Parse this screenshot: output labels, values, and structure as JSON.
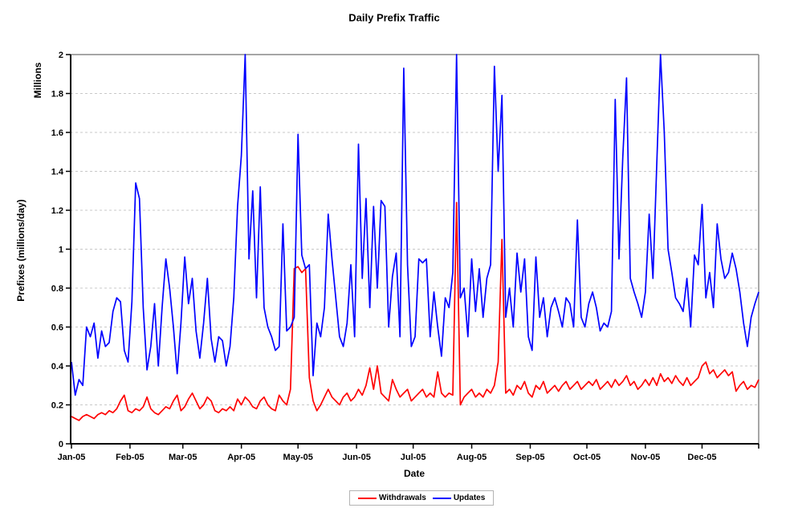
{
  "chart_data": {
    "type": "line",
    "title": "Daily Prefix Traffic",
    "xlabel": "Date",
    "ylabel": "Prefixes (millions/day)",
    "y_units_label": "Millions",
    "ylim": [
      0,
      2
    ],
    "y_tick_step": 0.2,
    "y_ticks": [
      "0",
      "0.2",
      "0.4",
      "0.6",
      "0.8",
      "1",
      "1.2",
      "1.4",
      "1.6",
      "1.8",
      "2"
    ],
    "x_tick_labels": [
      "Jan-05",
      "Feb-05",
      "Mar-05",
      "Apr-05",
      "May-05",
      "Jun-05",
      "Jul-05",
      "Aug-05",
      "Sep-05",
      "Oct-05",
      "Nov-05",
      "Dec-05"
    ],
    "x_tick_days": [
      0,
      31,
      59,
      90,
      120,
      151,
      181,
      212,
      243,
      273,
      304,
      334
    ],
    "days_total": 365,
    "grid": "horizontal-dashed",
    "grid_color": "#c8c8c8",
    "border_color": "#888888",
    "axis_color": "#000000",
    "legend_position": "bottom-center",
    "series": [
      {
        "name": "Withdrawals",
        "color": "#ff0000",
        "start_day": 0,
        "step_days": 2,
        "values": [
          0.14,
          0.13,
          0.12,
          0.14,
          0.15,
          0.14,
          0.13,
          0.15,
          0.16,
          0.15,
          0.17,
          0.16,
          0.18,
          0.22,
          0.25,
          0.17,
          0.16,
          0.18,
          0.17,
          0.19,
          0.24,
          0.18,
          0.16,
          0.15,
          0.17,
          0.19,
          0.18,
          0.22,
          0.25,
          0.17,
          0.19,
          0.23,
          0.26,
          0.22,
          0.18,
          0.2,
          0.24,
          0.22,
          0.17,
          0.16,
          0.18,
          0.17,
          0.19,
          0.17,
          0.23,
          0.2,
          0.24,
          0.22,
          0.19,
          0.18,
          0.22,
          0.24,
          0.2,
          0.18,
          0.17,
          0.25,
          0.22,
          0.2,
          0.28,
          0.9,
          0.91,
          0.88,
          0.9,
          0.34,
          0.22,
          0.17,
          0.2,
          0.24,
          0.28,
          0.24,
          0.22,
          0.2,
          0.24,
          0.26,
          0.22,
          0.24,
          0.28,
          0.25,
          0.3,
          0.39,
          0.28,
          0.4,
          0.26,
          0.24,
          0.22,
          0.33,
          0.28,
          0.24,
          0.26,
          0.28,
          0.22,
          0.24,
          0.26,
          0.28,
          0.24,
          0.26,
          0.24,
          0.37,
          0.26,
          0.24,
          0.26,
          0.25,
          1.24,
          0.2,
          0.24,
          0.26,
          0.28,
          0.24,
          0.26,
          0.24,
          0.28,
          0.26,
          0.3,
          0.42,
          1.05,
          0.26,
          0.28,
          0.25,
          0.3,
          0.28,
          0.32,
          0.26,
          0.24,
          0.3,
          0.28,
          0.32,
          0.26,
          0.28,
          0.3,
          0.27,
          0.3,
          0.32,
          0.28,
          0.3,
          0.32,
          0.28,
          0.3,
          0.32,
          0.3,
          0.33,
          0.28,
          0.3,
          0.32,
          0.29,
          0.33,
          0.3,
          0.32,
          0.35,
          0.3,
          0.32,
          0.28,
          0.3,
          0.33,
          0.3,
          0.34,
          0.3,
          0.36,
          0.32,
          0.34,
          0.31,
          0.35,
          0.32,
          0.3,
          0.34,
          0.3,
          0.32,
          0.34,
          0.4,
          0.42,
          0.36,
          0.38,
          0.34,
          0.36,
          0.38,
          0.35,
          0.37,
          0.27,
          0.3,
          0.32,
          0.28,
          0.3,
          0.29,
          0.33
        ]
      },
      {
        "name": "Updates",
        "color": "#0000ff",
        "start_day": 0,
        "step_days": 2,
        "values": [
          0.42,
          0.25,
          0.33,
          0.3,
          0.6,
          0.55,
          0.62,
          0.44,
          0.58,
          0.5,
          0.52,
          0.68,
          0.75,
          0.73,
          0.48,
          0.42,
          0.73,
          1.34,
          1.26,
          0.7,
          0.38,
          0.5,
          0.72,
          0.4,
          0.7,
          0.95,
          0.8,
          0.6,
          0.36,
          0.62,
          0.96,
          0.72,
          0.85,
          0.58,
          0.44,
          0.62,
          0.85,
          0.54,
          0.42,
          0.55,
          0.53,
          0.4,
          0.5,
          0.75,
          1.22,
          1.48,
          2.0,
          0.95,
          1.3,
          0.75,
          1.32,
          0.7,
          0.6,
          0.55,
          0.48,
          0.5,
          1.13,
          0.58,
          0.6,
          0.65,
          1.59,
          0.97,
          0.9,
          0.92,
          0.35,
          0.62,
          0.55,
          0.7,
          1.18,
          0.95,
          0.75,
          0.55,
          0.5,
          0.62,
          0.92,
          0.55,
          1.54,
          0.85,
          1.26,
          0.7,
          1.22,
          0.8,
          1.25,
          1.22,
          0.6,
          0.86,
          0.98,
          0.55,
          1.93,
          0.92,
          0.5,
          0.55,
          0.95,
          0.93,
          0.95,
          0.55,
          0.78,
          0.6,
          0.45,
          0.75,
          0.7,
          0.88,
          2.0,
          0.75,
          0.8,
          0.55,
          0.95,
          0.68,
          0.9,
          0.65,
          0.85,
          0.92,
          1.94,
          1.4,
          1.79,
          0.65,
          0.8,
          0.6,
          0.98,
          0.78,
          0.95,
          0.55,
          0.48,
          0.96,
          0.65,
          0.75,
          0.55,
          0.7,
          0.75,
          0.68,
          0.6,
          0.75,
          0.72,
          0.6,
          1.15,
          0.65,
          0.6,
          0.72,
          0.78,
          0.7,
          0.58,
          0.62,
          0.6,
          0.68,
          1.77,
          0.95,
          1.47,
          1.88,
          0.85,
          0.78,
          0.72,
          0.65,
          0.78,
          1.18,
          0.85,
          1.43,
          2.0,
          1.6,
          1.0,
          0.88,
          0.75,
          0.72,
          0.68,
          0.85,
          0.6,
          0.97,
          0.92,
          1.23,
          0.75,
          0.88,
          0.7,
          1.13,
          0.95,
          0.85,
          0.88,
          0.98,
          0.9,
          0.78,
          0.62,
          0.5,
          0.65,
          0.72,
          0.78
        ]
      }
    ]
  }
}
